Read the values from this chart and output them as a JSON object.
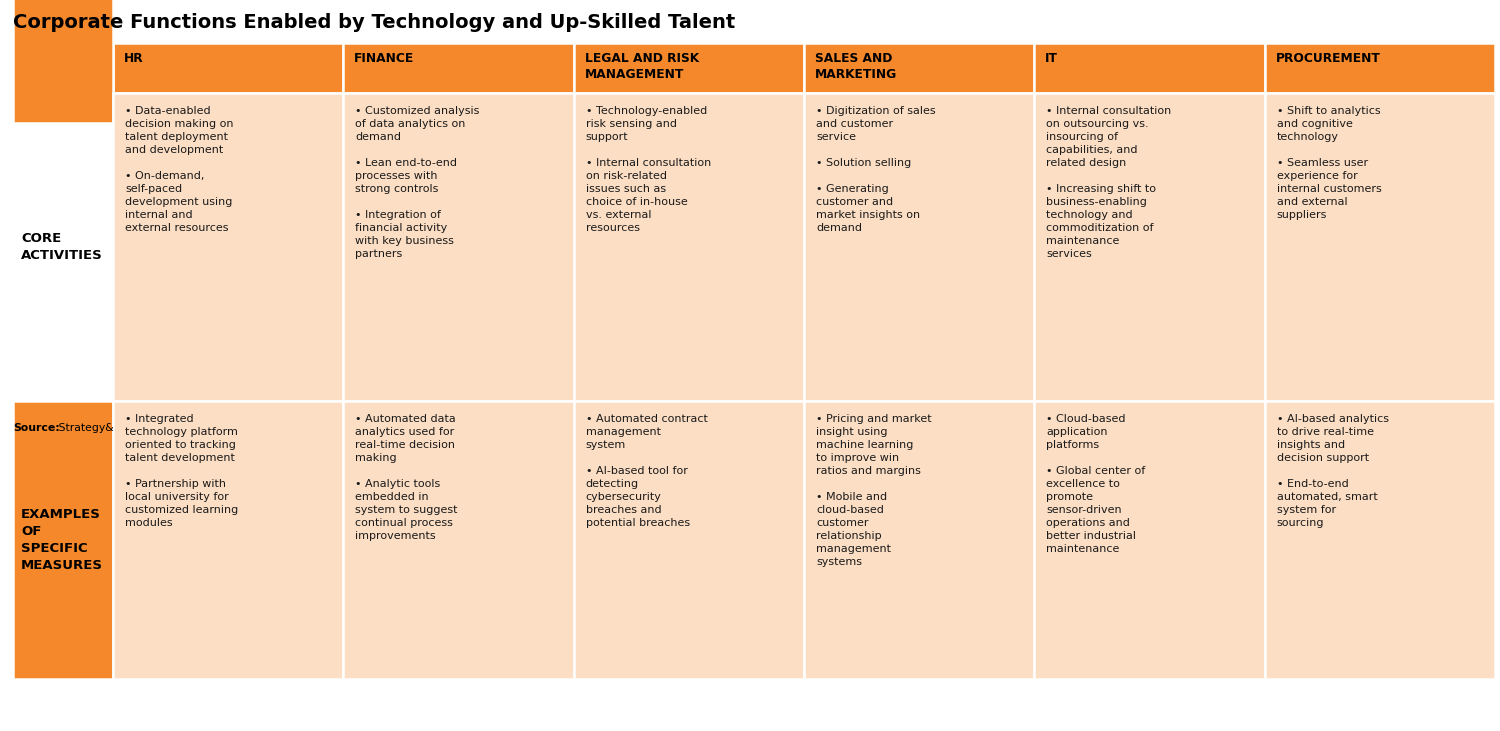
{
  "title": "Corporate Functions Enabled by Technology and Up-Skilled Talent",
  "source_bold": "Source:",
  "source_normal": " Strategy&",
  "header_bg": "#F4882A",
  "row_label_bg": "#F4882A",
  "cell_bg": "#FCDEC4",
  "columns": [
    "HR",
    "FINANCE",
    "LEGAL AND RISK\nMANAGEMENT",
    "SALES AND\nMARKETING",
    "IT",
    "PROCUREMENT"
  ],
  "row_labels": [
    "CORE\nACTIVITIES",
    "EXAMPLES\nOF\nSPECIFIC\nMEASURES"
  ],
  "core_activities": [
    "• Data-enabled\ndecision making on\ntalent deployment\nand development\n\n• On-demand,\nself-paced\ndevelopment using\ninternal and\nexternal resources",
    "• Customized analysis\nof data analytics on\ndemand\n\n• Lean end-to-end\nprocesses with\nstrong controls\n\n• Integration of\nfinancial activity\nwith key business\npartners",
    "• Technology-enabled\nrisk sensing and\nsupport\n\n• Internal consultation\non risk-related\nissues such as\nchoice of in-house\nvs. external\nresources",
    "• Digitization of sales\nand customer\nservice\n\n• Solution selling\n\n• Generating\ncustomer and\nmarket insights on\ndemand",
    "• Internal consultation\non outsourcing vs.\ninsourcing of\ncapabilities, and\nrelated design\n\n• Increasing shift to\nbusiness-enabling\ntechnology and\ncommoditization of\nmaintenance\nservices",
    "• Shift to analytics\nand cognitive\ntechnology\n\n• Seamless user\nexperience for\ninternal customers\nand external\nsuppliers"
  ],
  "specific_measures": [
    "• Integrated\ntechnology platform\noriented to tracking\ntalent development\n\n• Partnership with\nlocal university for\ncustomized learning\nmodules",
    "• Automated data\nanalytics used for\nreal-time decision\nmaking\n\n• Analytic tools\nembedded in\nsystem to suggest\ncontinual process\nimprovements",
    "• Automated contract\nmanagement\nsystem\n\n• AI-based tool for\ndetecting\ncybersecurity\nbreaches and\npotential breaches",
    "• Pricing and market\ninsight using\nmachine learning\nto improve win\nratios and margins\n\n• Mobile and\ncloud-based\ncustomer\nrelationship\nmanagement\nsystems",
    "• Cloud-based\napplication\nplatforms\n\n• Global center of\nexcellence to\npromote\nsensor-driven\noperations and\nbetter industrial\nmaintenance",
    "• AI-based analytics\nto drive real-time\ninsights and\ndecision support\n\n• End-to-end\nautomated, smart\nsystem for\nsourcing"
  ]
}
